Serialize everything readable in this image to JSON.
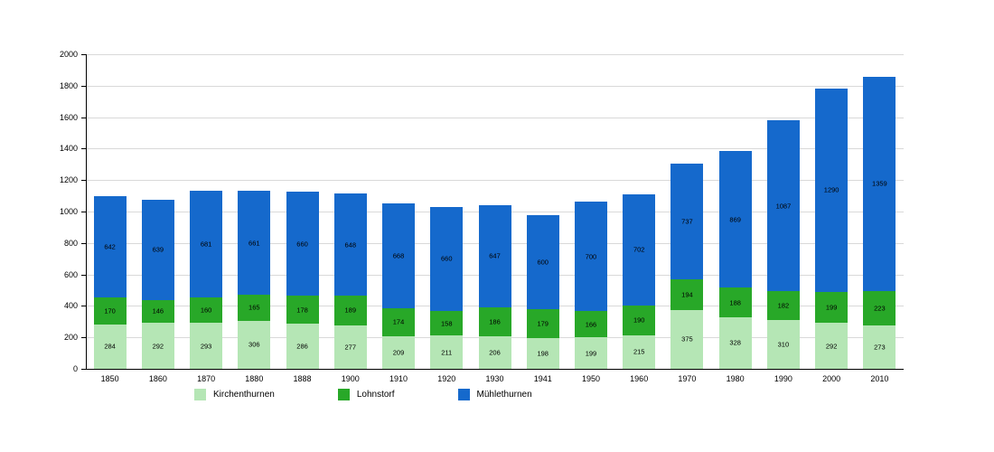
{
  "chart_data": {
    "type": "bar",
    "stacked": true,
    "title": "",
    "xlabel": "",
    "ylabel": "",
    "ylim": [
      0,
      2000
    ],
    "ytick_step": 200,
    "grid": true,
    "legend_position": "bottom",
    "categories": [
      "1850",
      "1860",
      "1870",
      "1880",
      "1888",
      "1900",
      "1910",
      "1920",
      "1930",
      "1941",
      "1950",
      "1960",
      "1970",
      "1980",
      "1990",
      "2000",
      "2010"
    ],
    "series": [
      {
        "name": "Kirchenthurnen",
        "color": "#b5e6b5",
        "values": [
          284,
          292,
          293,
          306,
          286,
          277,
          209,
          211,
          206,
          198,
          199,
          215,
          375,
          328,
          310,
          292,
          273
        ]
      },
      {
        "name": "Lohnstorf",
        "color": "#28a828",
        "values": [
          170,
          146,
          160,
          165,
          178,
          189,
          174,
          158,
          186,
          179,
          166,
          190,
          194,
          188,
          182,
          199,
          223
        ]
      },
      {
        "name": "Mühlethurnen",
        "color": "#1569cc",
        "values": [
          642,
          639,
          681,
          661,
          660,
          648,
          668,
          660,
          647,
          600,
          700,
          702,
          737,
          869,
          1087,
          1290,
          1359
        ]
      }
    ]
  }
}
